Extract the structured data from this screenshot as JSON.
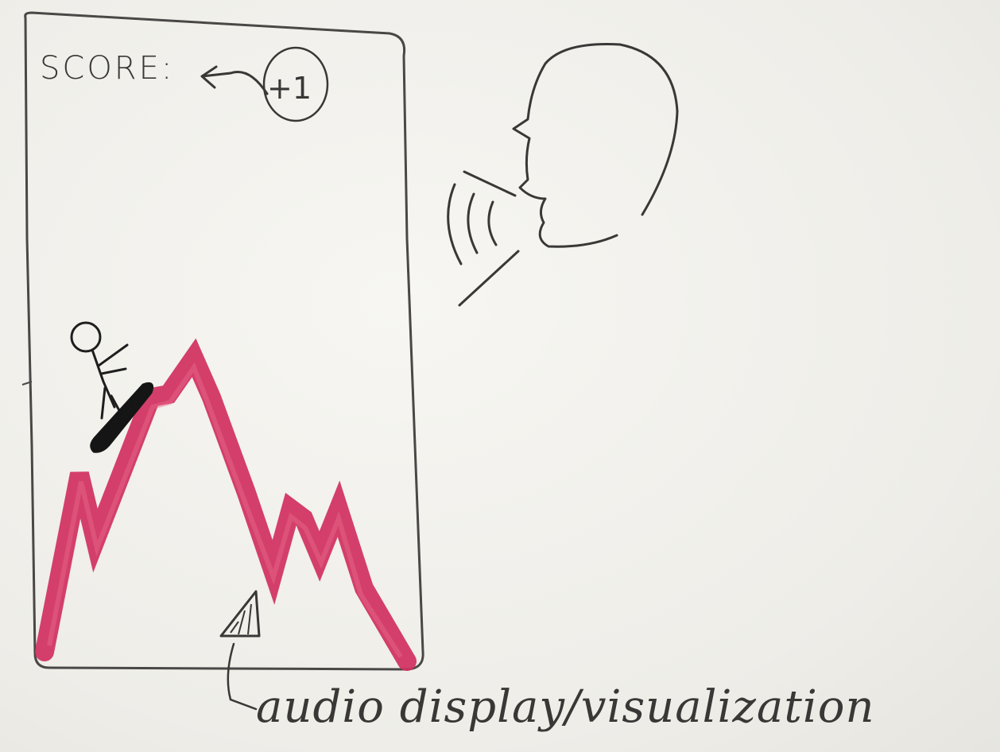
{
  "phone": {
    "score_label": "SCORE:",
    "score_bonus": "+1"
  },
  "annotation": {
    "caption": "audio display/visualization"
  },
  "icons": {
    "player": "stick-figure-on-sled",
    "terrain": "audio-waveform-mountain",
    "speaker": "person-speaking-head",
    "sound": "sound-waves",
    "audio_marker": "triangle-marker"
  },
  "colors": {
    "ink": "#3a3836",
    "waveform": "#d0305e",
    "sled": "#151515",
    "paper": "#f1f0ec"
  }
}
